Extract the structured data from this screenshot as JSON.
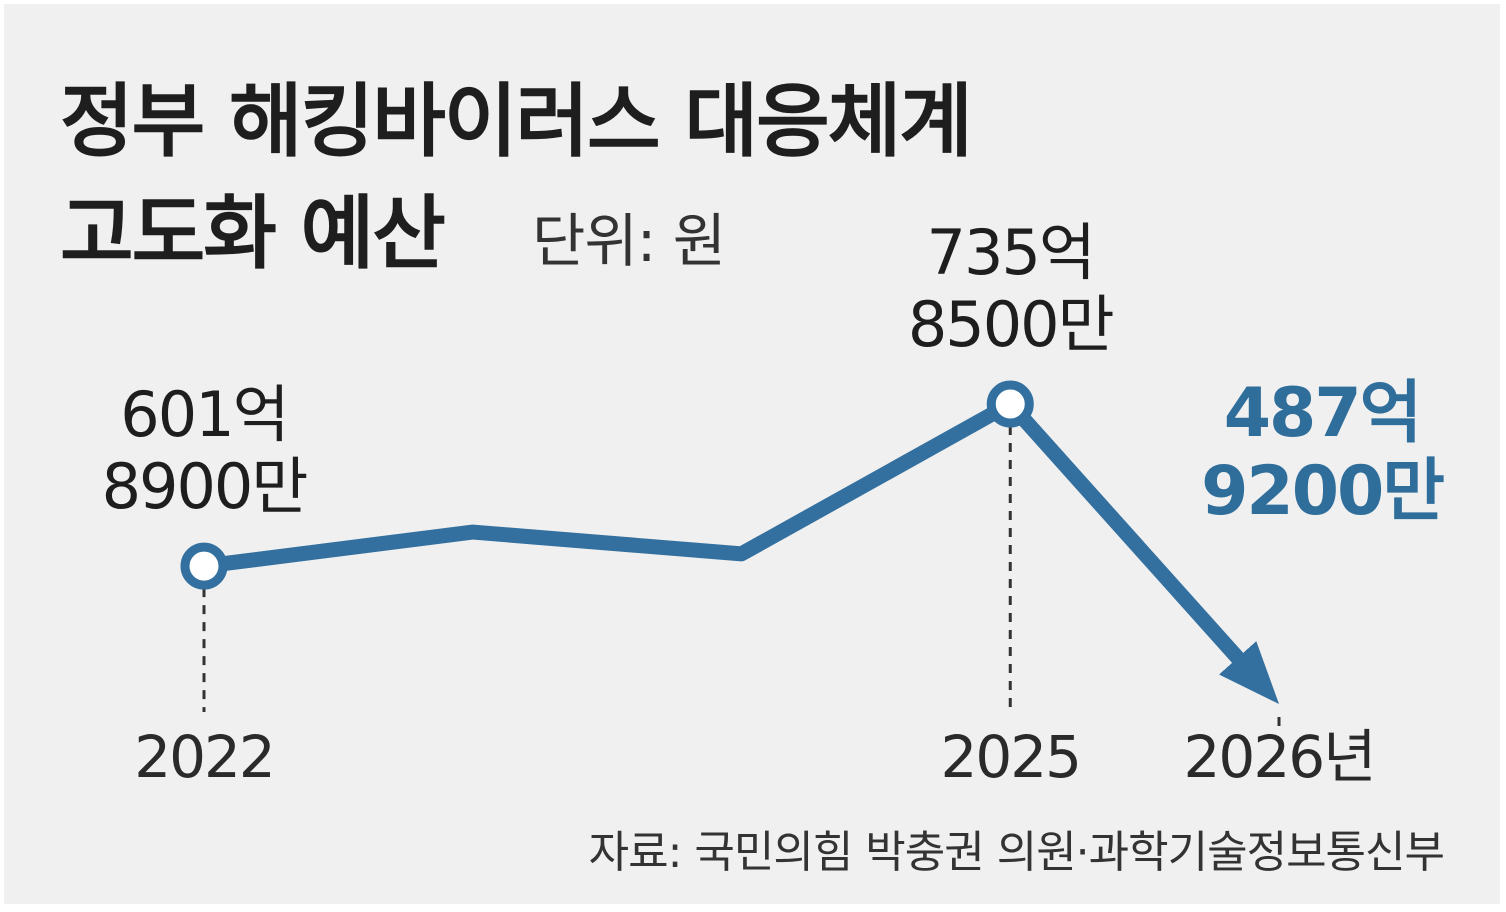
{
  "title": {
    "line1": "정부 해킹바이러스 대응체계",
    "line2": "고도화 예산"
  },
  "unit_label": "단위: 원",
  "source": "자료: 국민의힘 박충권 의원·과학기술정보통신부",
  "colors": {
    "line": "#33709f",
    "highlight": "#2f6d9b",
    "text": "#1e1e1e",
    "background": "#f0f0f0"
  },
  "chart_data": {
    "type": "line",
    "x": [
      2022,
      2023,
      2024,
      2025,
      2026
    ],
    "y": [
      601.89,
      630,
      612,
      735.85,
      487.92
    ],
    "y_unit": "억원",
    "x_tick_labels": [
      "2022",
      "",
      "",
      "2025",
      "2026년"
    ],
    "point_labels": [
      {
        "x": 2022,
        "line1": "601억",
        "line2": "8900만"
      },
      {
        "x": 2025,
        "line1": "735억",
        "line2": "8500만"
      },
      {
        "x": 2026,
        "line1": "487억",
        "line2": "9200만",
        "highlight": true
      }
    ],
    "grid": false,
    "legend": "none"
  }
}
